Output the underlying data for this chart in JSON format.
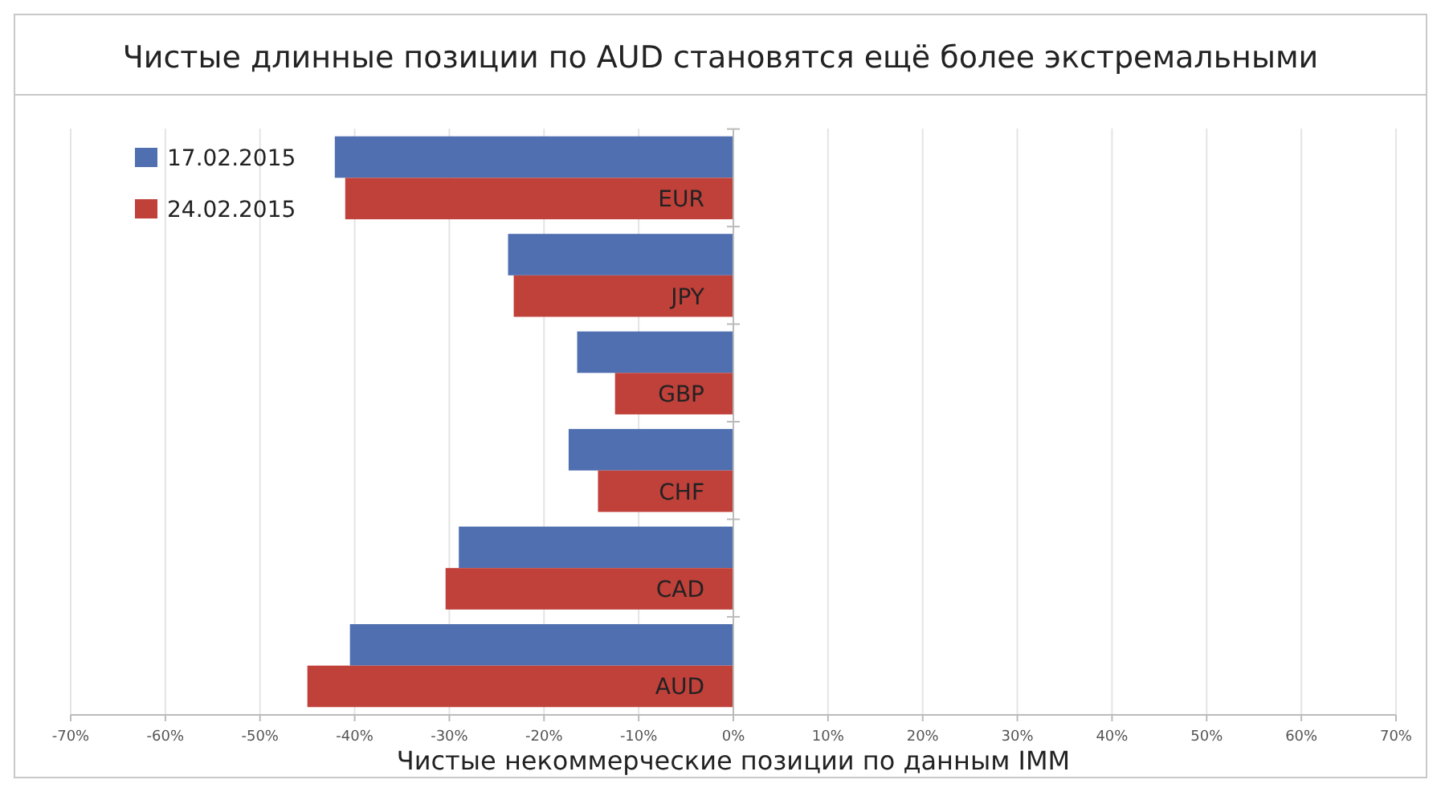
{
  "chart_data": {
    "type": "bar",
    "orientation": "horizontal",
    "title": "Чистые длинные позиции по AUD становятся ещё более экстремальными",
    "xlabel": "Чистые некоммерческие позиции по данным IMM",
    "categories": [
      "EUR",
      "JPY",
      "GBP",
      "CHF",
      "CAD",
      "AUD"
    ],
    "series": [
      {
        "name": "17.02.2015",
        "color": "#4f6fb0",
        "values": [
          -42.1,
          -23.8,
          -16.5,
          -17.4,
          -29.0,
          -40.5
        ]
      },
      {
        "name": "24.02.2015",
        "color": "#c0403a",
        "values": [
          -41.0,
          -23.2,
          -12.5,
          -14.3,
          -30.4,
          -45.0
        ]
      }
    ],
    "xlim": [
      -70,
      70
    ],
    "xticks": [
      {
        "value": -70,
        "label": "-70%"
      },
      {
        "value": -60,
        "label": "-60%"
      },
      {
        "value": -50,
        "label": "-50%"
      },
      {
        "value": -40,
        "label": "-40%"
      },
      {
        "value": -30,
        "label": "-30%"
      },
      {
        "value": -20,
        "label": "-20%"
      },
      {
        "value": -10,
        "label": "-10%"
      },
      {
        "value": 0,
        "label": "0%"
      },
      {
        "value": 10,
        "label": "10%"
      },
      {
        "value": 20,
        "label": "20%"
      },
      {
        "value": 30,
        "label": "30%"
      },
      {
        "value": 40,
        "label": "40%"
      },
      {
        "value": 50,
        "label": "50%"
      },
      {
        "value": 60,
        "label": "60%"
      },
      {
        "value": 70,
        "label": "70%"
      }
    ],
    "grid": "x",
    "legend": "top left"
  }
}
